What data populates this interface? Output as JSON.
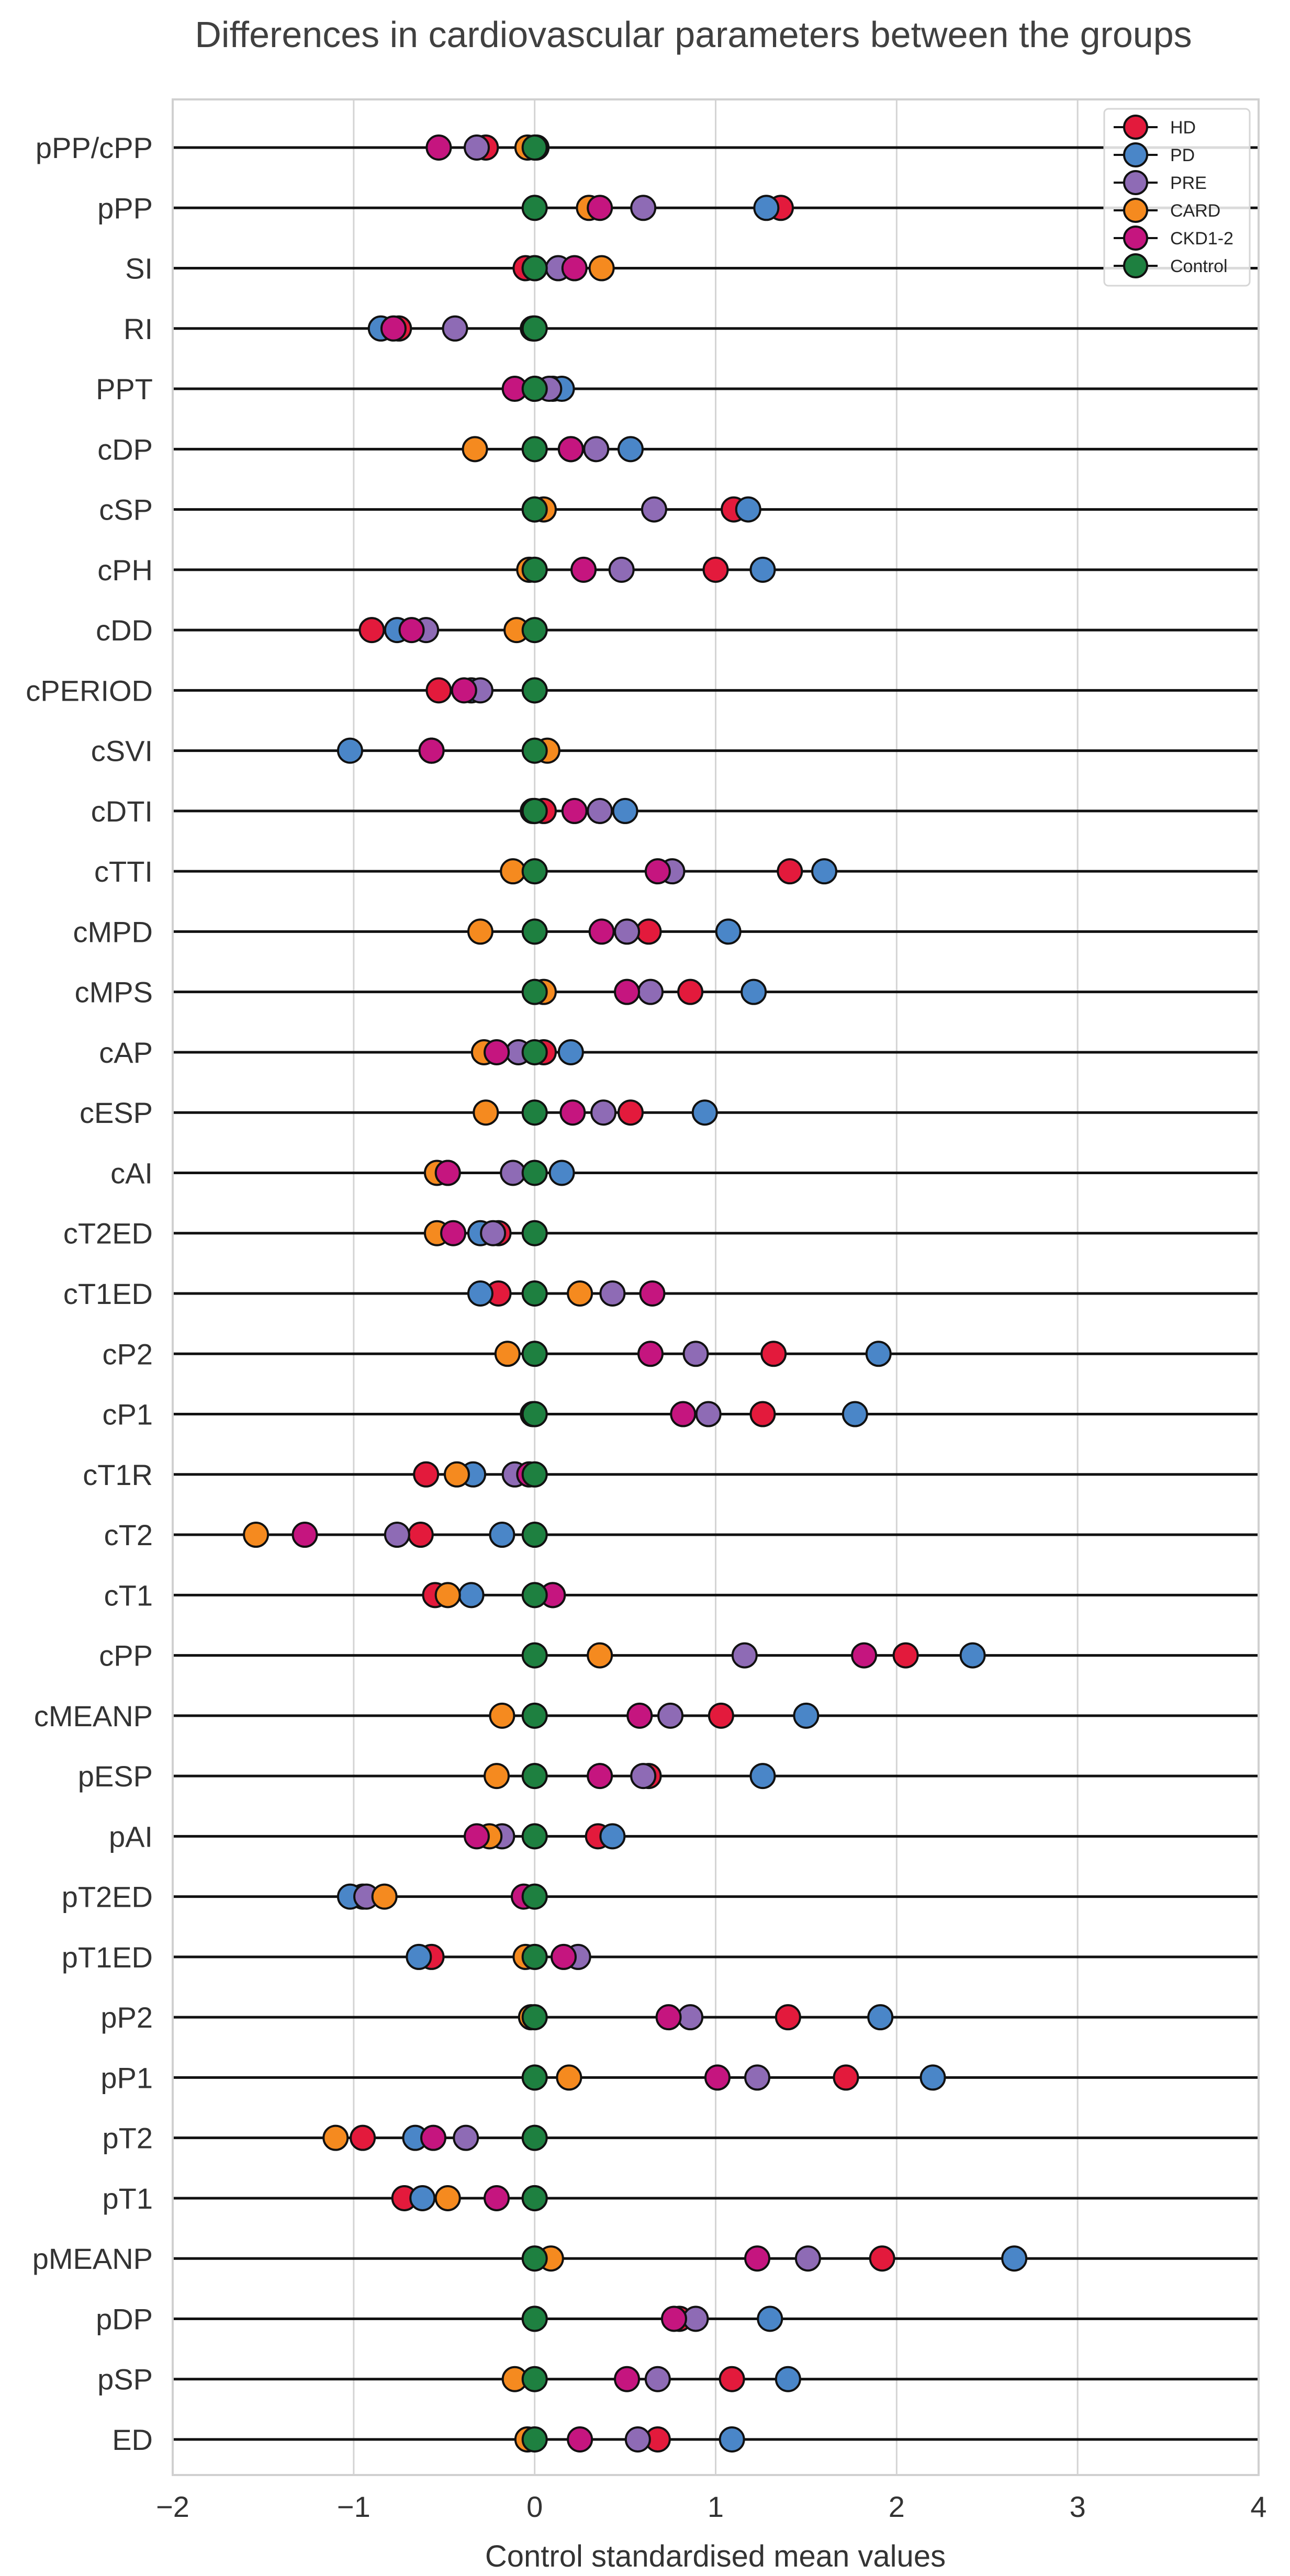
{
  "chart_data": {
    "type": "scatter",
    "title": "Differences in cardiovascular parameters between the groups",
    "xlabel": "Control standardised mean values",
    "ylabel": "",
    "xlim": [
      -2,
      4
    ],
    "xticks": [
      -2,
      -1,
      0,
      1,
      2,
      3,
      4
    ],
    "xtick_labels": [
      "−2",
      "−1",
      "0",
      "1",
      "2",
      "3",
      "4"
    ],
    "grid": "vertical",
    "legend_position": "top-right",
    "categories": [
      "pPP/cPP",
      "pPP",
      "SI",
      "RI",
      "PPT",
      "cDP",
      "cSP",
      "cPH",
      "cDD",
      "cPERIOD",
      "cSVI",
      "cDTI",
      "cTTI",
      "cMPD",
      "cMPS",
      "cAP",
      "cESP",
      "cAI",
      "cT2ED",
      "cT1ED",
      "cP2",
      "cP1",
      "cT1R",
      "cT2",
      "cT1",
      "cPP",
      "cMEANP",
      "pESP",
      "pAI",
      "pT2ED",
      "pT1ED",
      "pP2",
      "pP1",
      "pT2",
      "pT1",
      "pMEANP",
      "pDP",
      "pSP",
      "ED"
    ],
    "series": [
      {
        "name": "HD",
        "color": "#e31a3c",
        "values": [
          -0.27,
          1.36,
          -0.05,
          -0.75,
          0.1,
          0.2,
          1.1,
          1.0,
          -0.9,
          -0.53,
          -0.57,
          0.05,
          1.41,
          0.63,
          0.86,
          0.05,
          0.53,
          -0.48,
          -0.2,
          -0.2,
          1.32,
          1.26,
          -0.6,
          -0.63,
          -0.55,
          2.05,
          1.03,
          0.63,
          0.35,
          -0.95,
          -0.57,
          1.4,
          1.72,
          -0.95,
          -0.72,
          1.92,
          0.8,
          1.09,
          0.68
        ]
      },
      {
        "name": "PD",
        "color": "#4a86c8",
        "values": [
          0.01,
          1.28,
          0.0,
          -0.85,
          0.15,
          0.53,
          1.18,
          1.26,
          -0.76,
          -0.35,
          -1.02,
          0.5,
          1.6,
          1.07,
          1.21,
          0.2,
          0.94,
          0.15,
          -0.3,
          -0.3,
          1.9,
          1.77,
          -0.34,
          -0.18,
          -0.35,
          2.42,
          1.5,
          1.26,
          0.43,
          -1.02,
          -0.64,
          1.91,
          2.2,
          -0.66,
          -0.62,
          2.65,
          1.3,
          1.4,
          1.09
        ]
      },
      {
        "name": "PRE",
        "color": "#8e6bb5",
        "values": [
          -0.32,
          0.6,
          0.13,
          -0.44,
          0.08,
          0.34,
          0.66,
          0.48,
          -0.6,
          -0.3,
          -0.57,
          0.36,
          0.76,
          0.51,
          0.64,
          -0.09,
          0.38,
          -0.12,
          -0.23,
          0.43,
          0.89,
          0.96,
          -0.11,
          -0.76,
          0.1,
          1.16,
          0.75,
          0.6,
          -0.18,
          -0.93,
          0.24,
          0.86,
          1.23,
          -0.38,
          0.0,
          1.51,
          0.89,
          0.68,
          0.57
        ]
      },
      {
        "name": "CARD",
        "color": "#f58a1f",
        "values": [
          -0.04,
          0.3,
          0.37,
          -0.01,
          0.0,
          -0.33,
          0.05,
          -0.03,
          -0.1,
          0.0,
          0.07,
          -0.01,
          -0.12,
          -0.3,
          0.05,
          -0.28,
          -0.27,
          -0.54,
          -0.54,
          0.25,
          -0.15,
          -0.01,
          -0.43,
          -1.54,
          -0.48,
          0.36,
          -0.18,
          -0.21,
          -0.25,
          -0.83,
          -0.05,
          -0.02,
          0.19,
          -1.1,
          -0.48,
          0.09,
          0.0,
          -0.11,
          -0.04
        ]
      },
      {
        "name": "CKD1-2",
        "color": "#c5157f",
        "values": [
          -0.53,
          0.36,
          0.22,
          -0.78,
          -0.11,
          0.2,
          0.0,
          0.27,
          -0.68,
          -0.39,
          -0.57,
          0.22,
          0.68,
          0.37,
          0.51,
          -0.21,
          0.21,
          -0.48,
          -0.45,
          0.65,
          0.64,
          0.82,
          -0.03,
          -1.27,
          0.1,
          1.82,
          0.58,
          0.36,
          -0.32,
          -0.06,
          0.16,
          0.74,
          1.01,
          -0.56,
          -0.21,
          1.23,
          0.77,
          0.51,
          0.25
        ]
      },
      {
        "name": "Control",
        "color": "#1e8040",
        "values": [
          0,
          0,
          0,
          0,
          0,
          0,
          0,
          0,
          0,
          0,
          0,
          0,
          0,
          0,
          0,
          0,
          0,
          0,
          0,
          0,
          0,
          0,
          0,
          0,
          0,
          0,
          0,
          0,
          0,
          0,
          0,
          0,
          0,
          0,
          0,
          0,
          0,
          0,
          0
        ]
      }
    ]
  }
}
